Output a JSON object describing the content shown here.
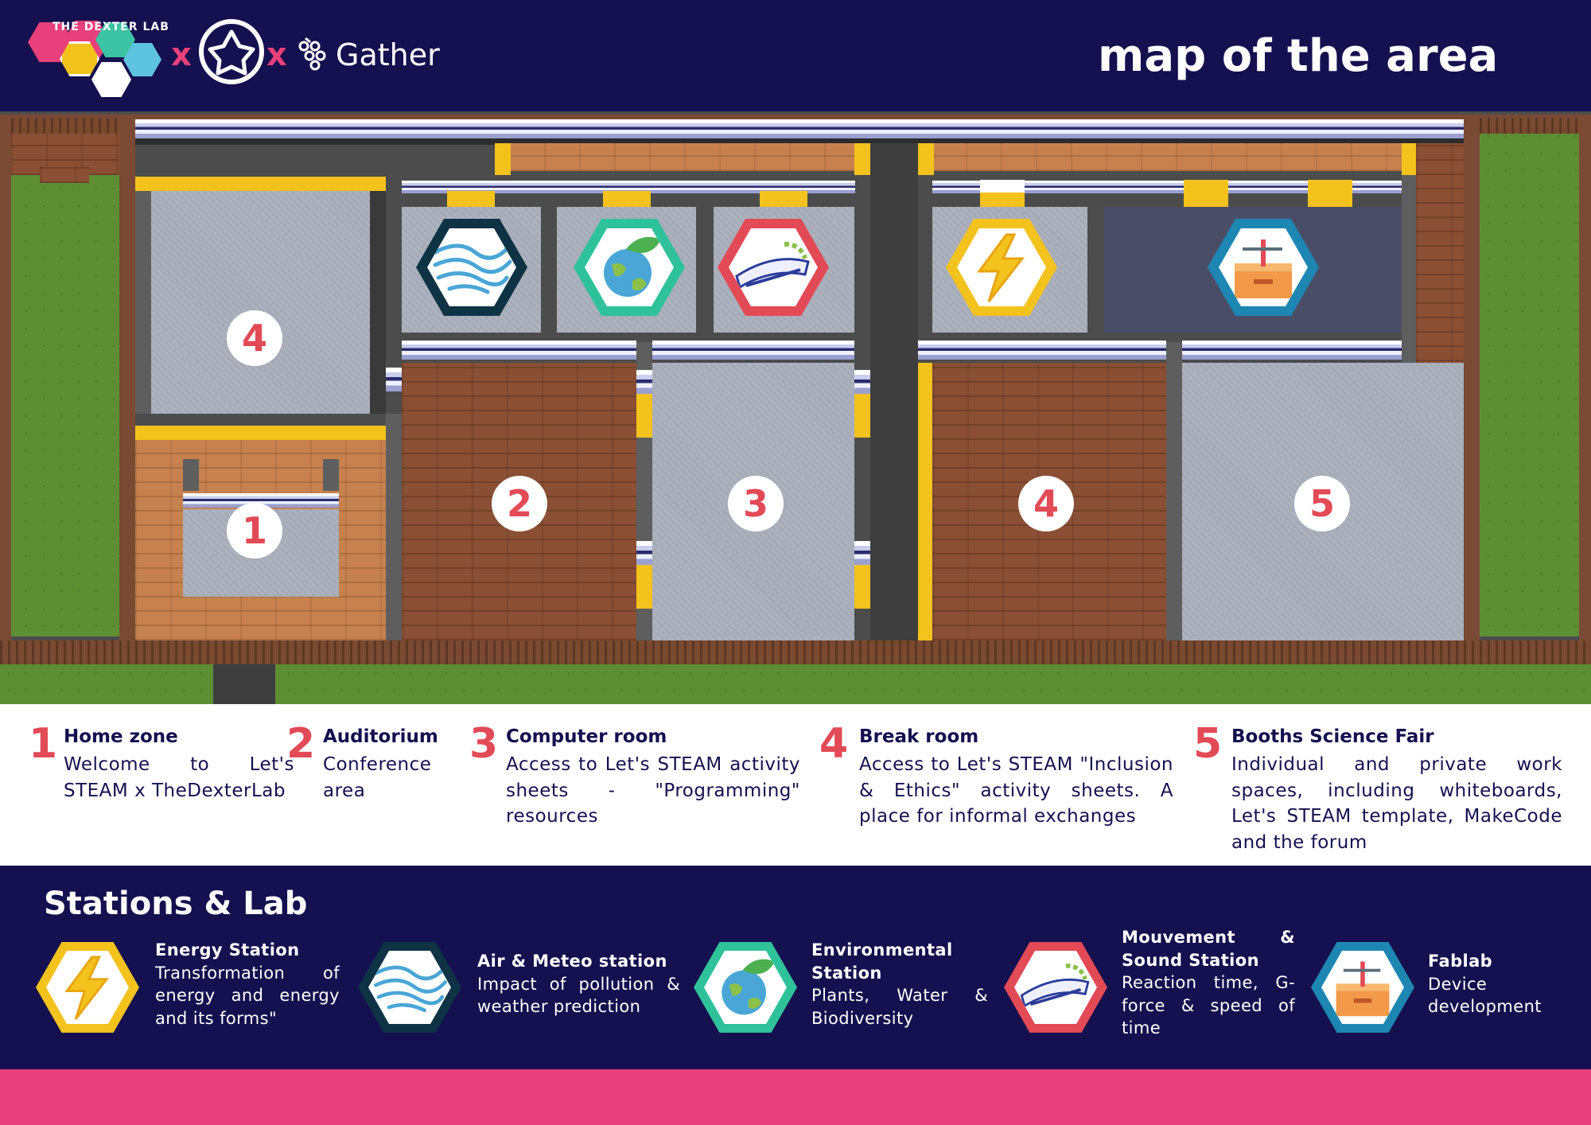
{
  "header": {
    "logo_text": "THE DEXTER LAB",
    "x1": "x",
    "x2": "x",
    "gather": "Gather",
    "title": "map of the area"
  },
  "map": {
    "markers": [
      "4",
      "1",
      "2",
      "3",
      "4",
      "5"
    ],
    "icons": [
      "air-meteo-station-icon",
      "environmental-station-icon",
      "mouvement-sound-station-icon",
      "energy-station-icon",
      "fablab-icon"
    ],
    "colors": {
      "brick": "#8a4f34",
      "carpet": "#a6abb8",
      "grass": "#5e8e34",
      "yellow": "#f4c21d"
    }
  },
  "legend": [
    {
      "num": "1",
      "title": "Home zone",
      "desc": "Welcome to Let's STEAM x TheDexterLab"
    },
    {
      "num": "2",
      "title": "Auditorium",
      "desc": "Conference area"
    },
    {
      "num": "3",
      "title": "Computer room",
      "desc": "Access to Let's STEAM activity sheets - \"Programming\" resources"
    },
    {
      "num": "4",
      "title": "Break room",
      "desc": "Access to Let's STEAM \"Inclusion & Ethics\" activity sheets. A place for informal exchanges"
    },
    {
      "num": "5",
      "title": "Booths Science Fair",
      "desc": "Individual and private work spaces, including whiteboards, Let's STEAM template, MakeCode and the forum"
    }
  ],
  "stations": {
    "title": "Stations & Lab",
    "items": [
      {
        "title": "Energy Station",
        "desc": "Transformation of energy and energy and its forms\"",
        "icon": "energy-station-icon",
        "ring": "#f4c21d"
      },
      {
        "title": "Air & Meteo station",
        "desc": "Impact of pollution & weather prediction",
        "icon": "air-meteo-station-icon",
        "ring": "#0d3344"
      },
      {
        "title": "Environmental Station",
        "desc": "Plants, Water & Biodiversity",
        "icon": "environmental-station-icon",
        "ring": "#2fc29a"
      },
      {
        "title": "Mouvement & Sound Station",
        "desc": "Reaction time, G-force & speed of time",
        "icon": "mouvement-sound-station-icon",
        "ring": "#e24a56"
      },
      {
        "title": "Fablab",
        "desc": "Device development",
        "icon": "fablab-icon",
        "ring": "#1e86b3"
      }
    ]
  }
}
